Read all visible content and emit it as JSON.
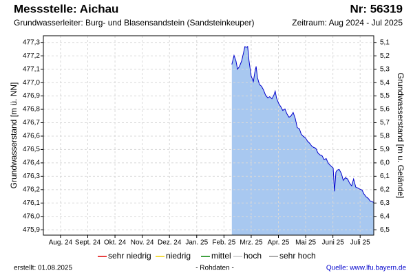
{
  "chart_data": {
    "type": "area",
    "title": "Messstelle: Aichau",
    "station_number": "Nr: 56319",
    "subtitle": "Grundwasserleiter:   Burg- und Blasensandstein (Sandsteinkeuper)",
    "period": "Zeitraum: Aug 2024 - Jul 2025",
    "ylabel": "Grundwasserstand [m ü. NN]",
    "y2label": "Grundwasserstand [m u. Gelände]",
    "xlim": [
      -0.13,
      12.0
    ],
    "xticks": [
      {
        "value": 0.5,
        "label": "Aug. 24"
      },
      {
        "value": 1.5,
        "label": "Sept. 24"
      },
      {
        "value": 2.5,
        "label": "Okt. 24"
      },
      {
        "value": 3.5,
        "label": "Nov. 24"
      },
      {
        "value": 4.5,
        "label": "Dez. 24"
      },
      {
        "value": 5.5,
        "label": "Jan. 25"
      },
      {
        "value": 6.5,
        "label": "Feb. 25"
      },
      {
        "value": 7.5,
        "label": "Mrz. 25"
      },
      {
        "value": 8.5,
        "label": "Apr. 25"
      },
      {
        "value": 9.5,
        "label": "Mai 25"
      },
      {
        "value": 10.5,
        "label": "Juni 25"
      },
      {
        "value": 11.5,
        "label": "Juli 25"
      }
    ],
    "ylim": [
      475.86,
      477.35
    ],
    "yticks": [
      {
        "value": 475.9,
        "label": "475,9"
      },
      {
        "value": 476.0,
        "label": "476,0"
      },
      {
        "value": 476.1,
        "label": "476,1"
      },
      {
        "value": 476.2,
        "label": "476,2"
      },
      {
        "value": 476.3,
        "label": "476,3"
      },
      {
        "value": 476.4,
        "label": "476,4"
      },
      {
        "value": 476.5,
        "label": "476,5"
      },
      {
        "value": 476.6,
        "label": "476,6"
      },
      {
        "value": 476.7,
        "label": "476,7"
      },
      {
        "value": 476.8,
        "label": "476,8"
      },
      {
        "value": 476.9,
        "label": "476,9"
      },
      {
        "value": 477.0,
        "label": "477,0"
      },
      {
        "value": 477.1,
        "label": "477,1"
      },
      {
        "value": 477.2,
        "label": "477,2"
      },
      {
        "value": 477.3,
        "label": "477,3"
      }
    ],
    "y2lim": [
      6.54,
      5.05
    ],
    "y2ticks": [
      {
        "value": 5.1,
        "label": "5,1"
      },
      {
        "value": 5.2,
        "label": "5,2"
      },
      {
        "value": 5.3,
        "label": "5,3"
      },
      {
        "value": 5.4,
        "label": "5,4"
      },
      {
        "value": 5.5,
        "label": "5,5"
      },
      {
        "value": 5.6,
        "label": "5,6"
      },
      {
        "value": 5.7,
        "label": "5,7"
      },
      {
        "value": 5.8,
        "label": "5,8"
      },
      {
        "value": 5.9,
        "label": "5,9"
      },
      {
        "value": 6.0,
        "label": "6,0"
      },
      {
        "value": 6.1,
        "label": "6,1"
      },
      {
        "value": 6.2,
        "label": "6,2"
      },
      {
        "value": 6.3,
        "label": "6,3"
      },
      {
        "value": 6.4,
        "label": "6,4"
      },
      {
        "value": 6.5,
        "label": "6,5"
      }
    ],
    "grid": true,
    "series": [
      {
        "color": "#0000cc",
        "fill": "#a8c8f0",
        "x": [
          6.79,
          6.87,
          6.94,
          7.0,
          7.07,
          7.15,
          7.22,
          7.27,
          7.32,
          7.37,
          7.42,
          7.5,
          7.58,
          7.63,
          7.68,
          7.73,
          7.8,
          7.88,
          7.95,
          8.03,
          8.11,
          8.18,
          8.26,
          8.33,
          8.38,
          8.43,
          8.51,
          8.59,
          8.66,
          8.74,
          8.81,
          8.89,
          8.96,
          9.04,
          9.12,
          9.19,
          9.27,
          9.34,
          9.42,
          9.49,
          9.57,
          9.65,
          9.72,
          9.8,
          9.87,
          9.95,
          10.03,
          10.1,
          10.18,
          10.25,
          10.33,
          10.4,
          10.45,
          10.51,
          10.56,
          10.61,
          10.66,
          10.73,
          10.81,
          10.88,
          10.96,
          11.04,
          11.11,
          11.19,
          11.26,
          11.34,
          11.41,
          11.49,
          11.57,
          11.64,
          11.72,
          11.79,
          11.87,
          11.94,
          11.99
        ],
        "values": [
          477.136,
          477.203,
          477.162,
          477.1,
          477.121,
          477.162,
          477.223,
          477.269,
          477.264,
          477.269,
          477.162,
          477.049,
          477.008,
          477.074,
          477.121,
          477.038,
          476.987,
          476.972,
          476.946,
          476.905,
          476.885,
          476.895,
          476.879,
          476.905,
          476.936,
          476.885,
          476.844,
          476.818,
          476.792,
          476.803,
          476.767,
          476.741,
          476.751,
          476.777,
          476.731,
          476.664,
          476.654,
          476.613,
          476.597,
          476.587,
          476.562,
          476.546,
          476.526,
          476.515,
          476.51,
          476.474,
          476.459,
          476.454,
          476.423,
          476.433,
          476.397,
          476.382,
          476.372,
          476.362,
          476.187,
          476.331,
          476.346,
          476.351,
          476.321,
          476.269,
          476.29,
          476.279,
          476.249,
          476.228,
          476.279,
          476.218,
          476.213,
          476.203,
          476.197,
          476.167,
          476.146,
          476.136,
          476.115,
          476.11,
          476.105
        ]
      }
    ],
    "legend": [
      {
        "name": "sehr niedrig",
        "color": "#e00000"
      },
      {
        "name": "niedrig",
        "color": "#f0d000"
      },
      {
        "name": "mittel",
        "color": "#008000"
      },
      {
        "name": "hoch",
        "color": "#c8c8c8"
      },
      {
        "name": "sehr hoch",
        "color": "#909090"
      }
    ],
    "created": "erstellt:  01.08.2025",
    "note": "- Rohdaten -",
    "source": "Quelle: www.lfu.bayern.de"
  }
}
